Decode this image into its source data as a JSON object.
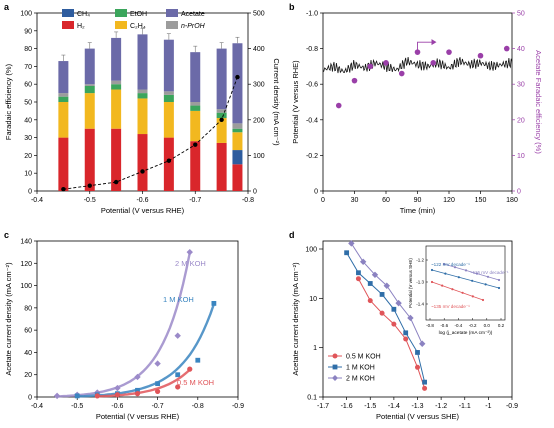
{
  "panels": [
    {
      "label": "a"
    },
    {
      "label": "b"
    },
    {
      "label": "c"
    },
    {
      "label": "d"
    }
  ],
  "chart_data": [
    {
      "panel": "a",
      "type": "bar",
      "stacked": true,
      "xlabel": "Potential (V versus RHE)",
      "ylabel": "Faradaic efficiency (%)",
      "y2label": "Current density (mA cm⁻²)",
      "xlim": [
        -0.4,
        -0.8
      ],
      "ylim": [
        0,
        100
      ],
      "y2lim": [
        0,
        500
      ],
      "xticks": [
        -0.4,
        -0.5,
        -0.6,
        -0.7,
        -0.8
      ],
      "yticks": [
        0,
        10,
        20,
        30,
        40,
        50,
        60,
        70,
        80,
        90,
        100
      ],
      "y2ticks": [
        0,
        100,
        200,
        300,
        400,
        500
      ],
      "colors": {
        "CH4": "#2e5c9e",
        "H2": "#d9262b",
        "EtOH": "#3ba55c",
        "C2H4": "#f2b81f",
        "Acetate": "#6b6aa8",
        "nPrOH": "#9c9c9c"
      },
      "legend": [
        "CH₄",
        "H₂",
        "EtOH",
        "C₂H₄",
        "Acetate",
        "n-PrOH"
      ],
      "x": [
        -0.45,
        -0.5,
        -0.55,
        -0.6,
        -0.65,
        -0.7,
        -0.75,
        -0.78
      ],
      "series": [
        {
          "name": "H₂",
          "key": "H2",
          "values": [
            30,
            35,
            35,
            32,
            30,
            28,
            27,
            15
          ]
        },
        {
          "name": "CH₄",
          "key": "CH4",
          "values": [
            0,
            0,
            0,
            0,
            0,
            0,
            0,
            8
          ]
        },
        {
          "name": "C₂H₄",
          "key": "C2H4",
          "values": [
            20,
            20,
            22,
            20,
            20,
            17,
            14,
            10
          ]
        },
        {
          "name": "EtOH",
          "key": "EtOH",
          "values": [
            3,
            4,
            3,
            3,
            4,
            3,
            3,
            2
          ]
        },
        {
          "name": "n-PrOH",
          "key": "nPrOH",
          "values": [
            2,
            1,
            2,
            2,
            2,
            2,
            2,
            3
          ]
        },
        {
          "name": "Acetate",
          "key": "Acetate",
          "values": [
            18,
            20,
            24,
            31,
            29,
            28,
            34,
            45
          ]
        }
      ],
      "current_density": {
        "x": [
          -0.45,
          -0.5,
          -0.55,
          -0.6,
          -0.65,
          -0.7,
          -0.75,
          -0.78
        ],
        "y": [
          5,
          15,
          25,
          55,
          85,
          130,
          200,
          320
        ]
      }
    },
    {
      "panel": "b",
      "type": "line+scatter",
      "xlabel": "Time (min)",
      "ylabel": "Potential (V versus RHE)",
      "y2label": "Acetate Faradaic efficiency (%)",
      "xlim": [
        0,
        180
      ],
      "ylim": [
        0,
        -1.0
      ],
      "y2lim": [
        0,
        50
      ],
      "xticks": [
        0,
        30,
        60,
        90,
        120,
        150,
        180
      ],
      "yticks": [
        0,
        -0.2,
        -0.4,
        -0.6,
        -0.8,
        -1.0
      ],
      "y2ticks": [
        0,
        10,
        20,
        30,
        40,
        50
      ],
      "potential": {
        "x": [
          0,
          10,
          20,
          30,
          40,
          50,
          60,
          70,
          80,
          90,
          100,
          110,
          120,
          130,
          140,
          150,
          160,
          170,
          180
        ],
        "y": [
          -0.68,
          -0.7,
          -0.67,
          -0.71,
          -0.69,
          -0.72,
          -0.7,
          -0.68,
          -0.73,
          -0.71,
          -0.7,
          -0.72,
          -0.69,
          -0.73,
          -0.71,
          -0.72,
          -0.7,
          -0.71,
          -0.72
        ]
      },
      "acetate_fe": {
        "x": [
          15,
          30,
          45,
          60,
          75,
          90,
          105,
          120,
          150,
          175
        ],
        "y": [
          24,
          31,
          35,
          36,
          33,
          39,
          36,
          39,
          38,
          40
        ]
      }
    },
    {
      "panel": "c",
      "type": "scatter",
      "xlabel": "Potential (V versus RHE)",
      "ylabel": "Acetate current density (mA cm⁻²)",
      "xlim": [
        -0.4,
        -0.9
      ],
      "ylim": [
        0,
        140
      ],
      "xticks": [
        -0.4,
        -0.5,
        -0.6,
        -0.7,
        -0.8,
        -0.9
      ],
      "yticks": [
        0,
        20,
        40,
        60,
        80,
        100,
        120,
        140
      ],
      "series": [
        {
          "name": "2 M KOH",
          "color": "#9b8ac9",
          "marker": "diamond",
          "x": [
            -0.45,
            -0.5,
            -0.55,
            -0.6,
            -0.65,
            -0.7,
            -0.75,
            -0.78
          ],
          "y": [
            1,
            2,
            4,
            8,
            18,
            30,
            55,
            130
          ]
        },
        {
          "name": "1 M KOH",
          "color": "#3a85c0",
          "marker": "square",
          "x": [
            -0.5,
            -0.55,
            -0.6,
            -0.65,
            -0.7,
            -0.75,
            -0.8,
            -0.84
          ],
          "y": [
            1,
            2,
            3,
            6,
            12,
            20,
            33,
            84
          ]
        },
        {
          "name": "0.5 M KOH",
          "color": "#e05559",
          "marker": "circle",
          "x": [
            -0.55,
            -0.6,
            -0.65,
            -0.7,
            -0.75,
            -0.78
          ],
          "y": [
            1,
            2,
            3,
            5,
            9,
            25
          ]
        }
      ]
    },
    {
      "panel": "d",
      "type": "scatter",
      "xlabel": "Potential (V versus SHE)",
      "ylabel": "Acetate current density (mA cm⁻²)",
      "xlim": [
        -1.7,
        -0.9
      ],
      "ylim": [
        0.1,
        100
      ],
      "yscale": "log",
      "xticks": [
        -1.7,
        -1.6,
        -1.5,
        -1.4,
        -1.3,
        -1.2,
        -1.1,
        -1.0,
        -0.9
      ],
      "ytick_labels": [
        "0.1",
        "1",
        "10",
        "100"
      ],
      "legend": [
        "0.5 M KOH",
        "1 M KOH",
        "2 M KOH"
      ],
      "series": [
        {
          "name": "0.5 M KOH",
          "color": "#e05559",
          "marker": "circle",
          "x": [
            -1.55,
            -1.5,
            -1.45,
            -1.4,
            -1.35,
            -1.3,
            -1.27
          ],
          "y": [
            25,
            9,
            5,
            3,
            1.5,
            0.4,
            0.15
          ]
        },
        {
          "name": "1 M KOH",
          "color": "#2f6ea8",
          "marker": "square",
          "x": [
            -1.6,
            -1.55,
            -1.5,
            -1.45,
            -1.4,
            -1.35,
            -1.3,
            -1.27
          ],
          "y": [
            84,
            33,
            20,
            12,
            6,
            2,
            0.8,
            0.2
          ]
        },
        {
          "name": "2 M KOH",
          "color": "#8b82c1",
          "marker": "diamond",
          "x": [
            -1.58,
            -1.53,
            -1.48,
            -1.43,
            -1.38,
            -1.33,
            -1.28
          ],
          "y": [
            130,
            55,
            30,
            18,
            8,
            4,
            1.2
          ]
        }
      ],
      "inset": {
        "xlabel": "log (j_acetate (mA cm⁻²))",
        "ylabel": "Potential (V versus SHE)",
        "xticks": [
          "-0.8",
          "-0.6",
          "-0.4",
          "-0.2",
          "0.0",
          "0.2"
        ],
        "yticks": [
          "-1.2",
          "-1.3",
          "-1.4"
        ],
        "annotations": [
          "~122 mV decade⁻¹",
          "~115 mV decade⁻¹",
          "~135 mV decade⁻¹"
        ]
      }
    }
  ]
}
